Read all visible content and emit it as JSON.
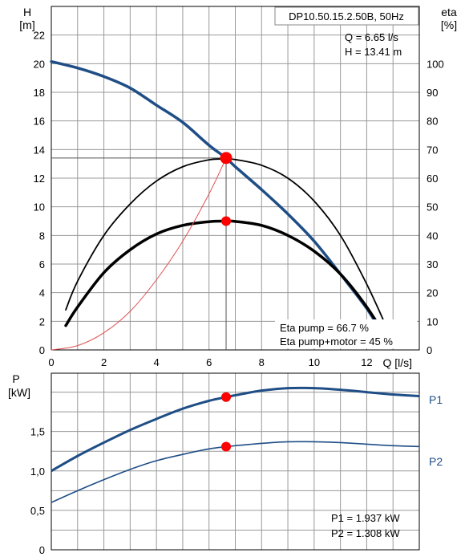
{
  "title": "DP10.50.15.2.50B, 50Hz",
  "readout": {
    "q": "Q = 6.65 l/s",
    "h": "H = 13.41 m"
  },
  "eff_readout": {
    "eta_pump": "Eta pump = 66.7 %",
    "eta_total": "Eta pump+motor = 45 %"
  },
  "power_readout": {
    "p1": "P1 = 1.937 kW",
    "p2": "P2 = 1.308 kW"
  },
  "colors": {
    "curve_blue": "#1f4e86",
    "marker_red": "#ff0000",
    "system_curve": "#e05050",
    "black": "#000000"
  },
  "chart_data": [
    {
      "type": "line",
      "xlabel": "Q [l/s]",
      "ylabel_left": [
        "H",
        "[m]"
      ],
      "ylabel_right": [
        "eta",
        "[%]"
      ],
      "xlim": [
        0,
        14
      ],
      "ylim_left": [
        0,
        24
      ],
      "ylim_right": [
        0,
        120
      ],
      "x_ticks": [
        "0",
        "2",
        "4",
        "6",
        "8",
        "10",
        "12"
      ],
      "y_ticks_left": [
        "0",
        "2",
        "4",
        "6",
        "8",
        "10",
        "12",
        "14",
        "16",
        "18",
        "20",
        "22"
      ],
      "y_ticks_right": [
        "0",
        "10",
        "20",
        "30",
        "40",
        "50",
        "60",
        "70",
        "80",
        "90",
        "100"
      ],
      "grid": true,
      "series": [
        {
          "axis": "left",
          "x": [
            0,
            1,
            2,
            3,
            4,
            5,
            6,
            6.65,
            7,
            8,
            9,
            10,
            11,
            12,
            12.6
          ],
          "y": [
            20.15,
            19.7,
            19.1,
            18.3,
            17.1,
            15.9,
            14.3,
            13.41,
            12.8,
            11.2,
            9.5,
            7.6,
            5.3,
            2.9,
            1.1
          ]
        },
        {
          "axis": "right",
          "x": [
            0.55,
            1,
            2,
            3,
            4,
            5,
            6,
            6.65,
            7,
            8,
            9,
            10,
            11,
            12,
            12.8
          ],
          "y": [
            14,
            24,
            40,
            51,
            59,
            64,
            66.4,
            66.7,
            66.5,
            64.5,
            60,
            52,
            40,
            23,
            7
          ]
        },
        {
          "axis": "right",
          "x": [
            0.55,
            1,
            2,
            3,
            4,
            5,
            6,
            6.65,
            7,
            8,
            9,
            10,
            11,
            12,
            12.9
          ],
          "y": [
            8.5,
            15,
            27,
            35,
            40.5,
            43.5,
            44.8,
            45,
            44.9,
            43.5,
            40,
            34.5,
            26.5,
            15,
            2
          ]
        },
        {
          "axis": "left",
          "x": [
            0,
            1,
            2,
            3,
            4,
            5,
            6,
            6.65
          ],
          "y": [
            0,
            0.3,
            1.2,
            2.7,
            4.9,
            7.6,
            10.9,
            13.41
          ]
        }
      ],
      "operating_point": {
        "q": 6.65,
        "h": 13.41,
        "eta_pump": 66.7,
        "eta_total": 45
      }
    },
    {
      "type": "line",
      "ylabel": [
        "P",
        "[kW]"
      ],
      "xlim": [
        0,
        14
      ],
      "ylim": [
        0,
        2.24
      ],
      "y_ticks": [
        "0",
        "0,5",
        "1,0",
        "1,5"
      ],
      "grid": true,
      "series": [
        {
          "name": "P1",
          "x": [
            0,
            1,
            2,
            3,
            4,
            5,
            6,
            6.65,
            7,
            8,
            9,
            10,
            11,
            12,
            13,
            14
          ],
          "y": [
            1.0,
            1.19,
            1.36,
            1.52,
            1.66,
            1.79,
            1.89,
            1.937,
            1.96,
            2.02,
            2.05,
            2.05,
            2.03,
            2.0,
            1.97,
            1.95
          ]
        },
        {
          "name": "P2",
          "x": [
            0,
            1,
            2,
            3,
            4,
            5,
            6,
            6.65,
            7,
            8,
            9,
            10,
            11,
            12,
            13,
            14
          ],
          "y": [
            0.6,
            0.75,
            0.89,
            1.02,
            1.13,
            1.21,
            1.28,
            1.308,
            1.32,
            1.35,
            1.37,
            1.37,
            1.36,
            1.34,
            1.32,
            1.31
          ]
        }
      ],
      "operating_point": {
        "q": 6.65,
        "p1": 1.937,
        "p2": 1.308
      }
    }
  ]
}
